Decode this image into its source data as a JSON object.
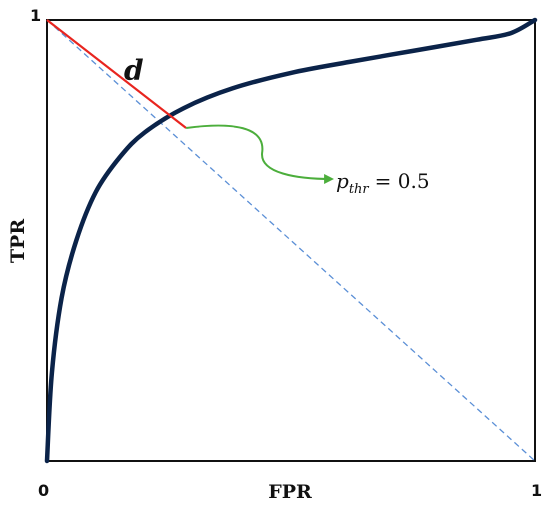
{
  "chart_data": {
    "type": "line",
    "xlabel": "FPR",
    "ylabel": "TPR",
    "xlim": [
      0,
      1
    ],
    "ylim": [
      0,
      1
    ],
    "x_ticks": [
      "0",
      "1"
    ],
    "y_ticks": [
      "1"
    ],
    "grid": false,
    "series": [
      {
        "x": [
          0,
          0.01,
          0.03,
          0.06,
          0.1,
          0.15,
          0.2,
          0.28,
          0.38,
          0.5,
          0.62,
          0.75,
          0.88,
          0.95,
          1
        ],
        "y": [
          0,
          0.2,
          0.37,
          0.5,
          0.61,
          0.69,
          0.745,
          0.8,
          0.845,
          0.88,
          0.905,
          0.93,
          0.955,
          0.97,
          1
        ],
        "color": "#0b2349"
      },
      {
        "x": [
          0,
          1
        ],
        "y": [
          1,
          0
        ],
        "color": "#5b8fd6",
        "style": "dashed"
      },
      {
        "x": [
          0,
          0.285
        ],
        "y": [
          1,
          0.755
        ],
        "color": "#e8251f"
      }
    ],
    "annotations": {
      "distance_label": "d",
      "threshold_var": "p",
      "threshold_sub": "thr",
      "threshold_value": "= 0.5",
      "threshold_point": {
        "x": 0.285,
        "y": 0.755
      },
      "arrow_color": "#4cae3c"
    }
  }
}
